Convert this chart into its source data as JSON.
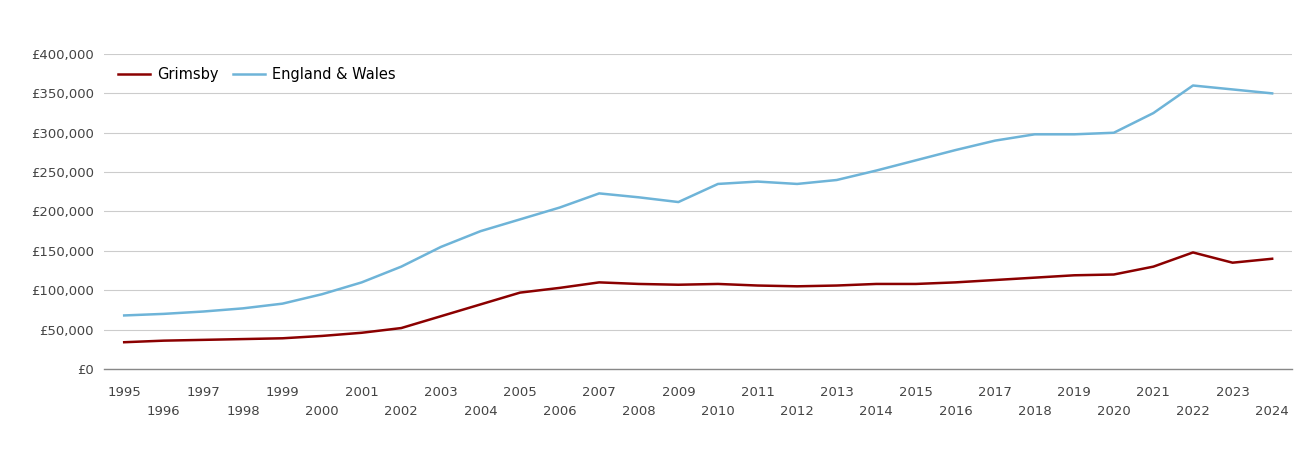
{
  "years": [
    1995,
    1996,
    1997,
    1998,
    1999,
    2000,
    2001,
    2002,
    2003,
    2004,
    2005,
    2006,
    2007,
    2008,
    2009,
    2010,
    2011,
    2012,
    2013,
    2014,
    2015,
    2016,
    2017,
    2018,
    2019,
    2020,
    2021,
    2022,
    2023,
    2024
  ],
  "grimsby": [
    34000,
    36000,
    37000,
    38000,
    39000,
    42000,
    46000,
    52000,
    67000,
    82000,
    97000,
    103000,
    110000,
    108000,
    107000,
    108000,
    106000,
    105000,
    106000,
    108000,
    108000,
    110000,
    113000,
    116000,
    119000,
    120000,
    130000,
    148000,
    135000,
    140000
  ],
  "england_wales": [
    68000,
    70000,
    73000,
    77000,
    83000,
    95000,
    110000,
    130000,
    155000,
    175000,
    190000,
    205000,
    223000,
    218000,
    212000,
    235000,
    238000,
    235000,
    240000,
    252000,
    265000,
    278000,
    290000,
    298000,
    298000,
    300000,
    325000,
    360000,
    355000,
    350000
  ],
  "grimsby_color": "#8B0000",
  "england_wales_color": "#6EB4D8",
  "background_color": "#ffffff",
  "grid_color": "#cccccc",
  "ylim": [
    0,
    400000
  ],
  "yticks": [
    0,
    50000,
    100000,
    150000,
    200000,
    250000,
    300000,
    350000,
    400000
  ],
  "legend_grimsby": "Grimsby",
  "legend_ew": "England & Wales",
  "line_width": 1.8
}
